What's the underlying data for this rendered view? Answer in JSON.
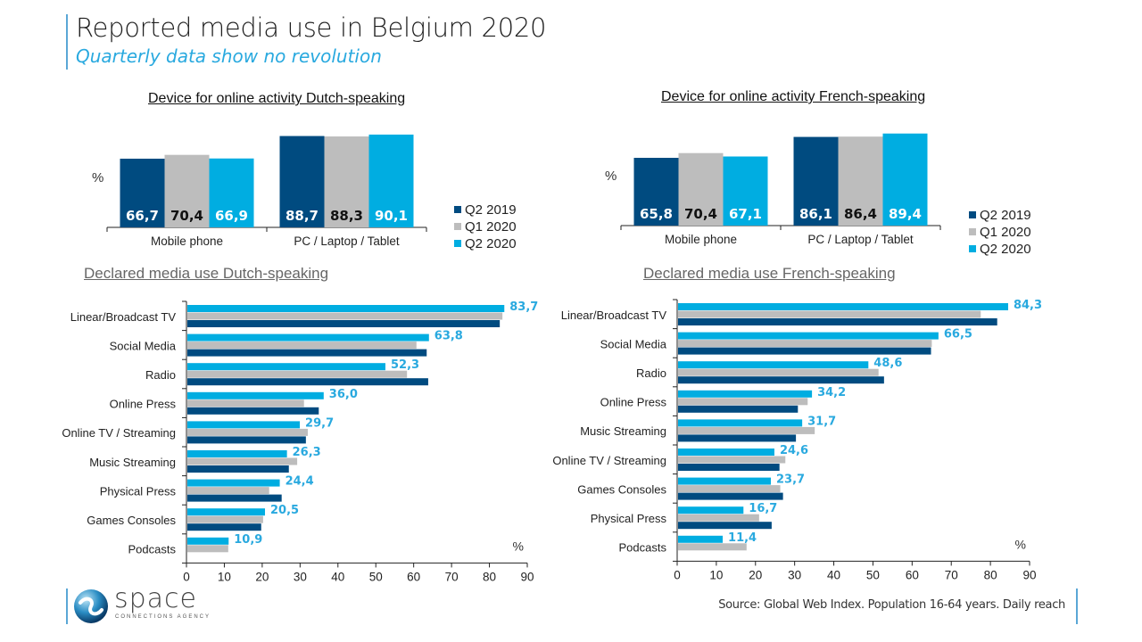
{
  "header": {
    "title": "Reported media use in Belgium 2020",
    "subtitle": "Quarterly data show no revolution"
  },
  "colors": {
    "q2_2019": "#004b80",
    "q1_2020": "#bdbdbd",
    "q2_2020": "#00ade1",
    "label_light": "#ffffff",
    "label_dark": "#111111",
    "value_label": "#29a9df",
    "accent": "#5aa7d6"
  },
  "legend": [
    "Q2 2019",
    "Q1 2020",
    "Q2 2020"
  ],
  "chart_data": [
    {
      "id": "device-dutch",
      "type": "bar",
      "title": "Device for online activity Dutch-speaking",
      "ylabel": "%",
      "categories": [
        "Mobile phone",
        "PC / Laptop / Tablet"
      ],
      "series": [
        {
          "name": "Q2 2019",
          "values": [
            66.7,
            88.7
          ],
          "labels": [
            "66,7",
            "88,7"
          ]
        },
        {
          "name": "Q1 2020",
          "values": [
            70.4,
            88.3
          ],
          "labels": [
            "70,4",
            "88,3"
          ]
        },
        {
          "name": "Q2 2020",
          "values": [
            66.9,
            90.1
          ],
          "labels": [
            "66,9",
            "90,1"
          ]
        }
      ],
      "legend_position": "right"
    },
    {
      "id": "device-french",
      "type": "bar",
      "title": "Device for online activity French-speaking",
      "ylabel": "%",
      "categories": [
        "Mobile phone",
        "PC / Laptop / Tablet"
      ],
      "series": [
        {
          "name": "Q2 2019",
          "values": [
            65.8,
            86.1
          ],
          "labels": [
            "65,8",
            "86,1"
          ]
        },
        {
          "name": "Q1 2020",
          "values": [
            70.4,
            86.4
          ],
          "labels": [
            "70,4",
            "86,4"
          ]
        },
        {
          "name": "Q2 2020",
          "values": [
            67.1,
            89.4
          ],
          "labels": [
            "67,1",
            "89,4"
          ]
        }
      ],
      "legend_position": "right"
    },
    {
      "id": "media-dutch",
      "type": "bar",
      "orientation": "horizontal",
      "title": "Declared media use Dutch-speaking",
      "xlabel": "%",
      "xlim": [
        0,
        90
      ],
      "xticks": [
        0,
        10,
        20,
        30,
        40,
        50,
        60,
        70,
        80,
        90
      ],
      "categories": [
        "Linear/Broadcast TV",
        "Social Media",
        "Radio",
        "Online Press",
        "Online TV / Streaming",
        "Music Streaming",
        "Physical Press",
        "Games Consoles",
        "Podcasts"
      ],
      "series": [
        {
          "name": "Q2 2020",
          "values": [
            83.7,
            63.8,
            52.3,
            36.0,
            29.7,
            26.3,
            24.4,
            20.5,
            10.9
          ],
          "labels": [
            "83,7",
            "63,8",
            "52,3",
            "36,0",
            "29,7",
            "26,3",
            "24,4",
            "20,5",
            "10,9"
          ]
        },
        {
          "name": "Q1 2020",
          "values": [
            83.2,
            60.5,
            58.0,
            30.8,
            31.8,
            29.0,
            21.6,
            20.0,
            10.8
          ]
        },
        {
          "name": "Q2 2019",
          "values": [
            82.5,
            63.2,
            63.6,
            34.7,
            31.3,
            26.8,
            24.9,
            19.5,
            null
          ]
        }
      ]
    },
    {
      "id": "media-french",
      "type": "bar",
      "orientation": "horizontal",
      "title": "Declared media use French-speaking",
      "xlabel": "%",
      "xlim": [
        0,
        90
      ],
      "xticks": [
        0,
        10,
        20,
        30,
        40,
        50,
        60,
        70,
        80,
        90
      ],
      "categories": [
        "Linear/Broadcast TV",
        "Social Media",
        "Radio",
        "Online Press",
        "Music Streaming",
        "Online TV / Streaming",
        "Games Consoles",
        "Physical Press",
        "Podcasts"
      ],
      "series": [
        {
          "name": "Q2 2020",
          "values": [
            84.3,
            66.5,
            48.6,
            34.2,
            31.7,
            24.6,
            23.7,
            16.7,
            11.4
          ],
          "labels": [
            "84,3",
            "66,5",
            "48,6",
            "34,2",
            "31,7",
            "24,6",
            "23,7",
            "16,7",
            "11,4"
          ]
        },
        {
          "name": "Q1 2020",
          "values": [
            77.3,
            64.8,
            51.2,
            33.1,
            34.9,
            27.4,
            26.1,
            20.7,
            17.5
          ]
        },
        {
          "name": "Q2 2019",
          "values": [
            81.5,
            64.6,
            52.6,
            30.6,
            30.1,
            25.9,
            26.8,
            23.9,
            null
          ]
        }
      ]
    }
  ],
  "footer": {
    "source": "Source: Global Web Index. Population 16-64 years. Daily reach",
    "logo_word": "space",
    "logo_tagline": "CONNECTIONS AGENCY"
  }
}
